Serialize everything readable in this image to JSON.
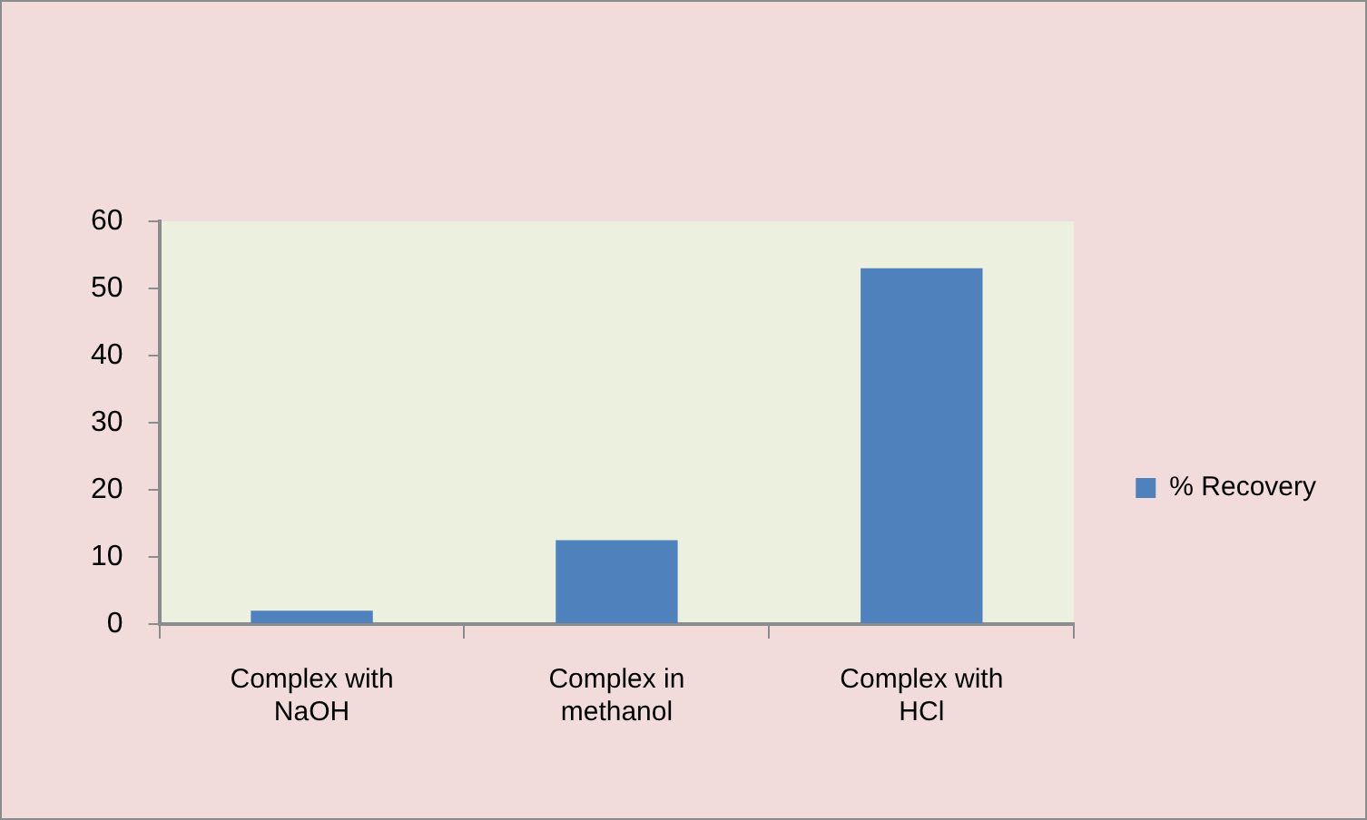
{
  "chart_data": {
    "type": "bar",
    "categories": [
      "Complex with NaOH",
      "Complex in methanol",
      "Complex with HCl"
    ],
    "series": [
      {
        "name": "% Recovery",
        "color": "#4f81bd",
        "values": [
          2,
          12.5,
          53
        ]
      }
    ],
    "ylim": [
      0,
      60
    ],
    "yticks": [
      0,
      10,
      20,
      30,
      40,
      50,
      60
    ],
    "grid": false,
    "legend": "right"
  }
}
